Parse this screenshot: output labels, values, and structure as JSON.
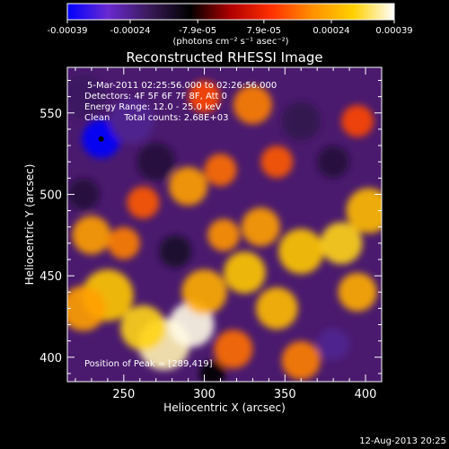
{
  "chart_data": {
    "type": "heatmap",
    "title": "Reconstructed RHESSI Image",
    "xlabel": "Heliocentric X (arcsec)",
    "ylabel": "Heliocentric Y (arcsec)",
    "xlim": [
      215,
      410
    ],
    "ylim": [
      385,
      578
    ],
    "x_ticks": [
      250,
      300,
      350,
      400
    ],
    "y_ticks": [
      400,
      450,
      500,
      550
    ],
    "colorbar": {
      "range": [
        -0.00039,
        0.00039
      ],
      "ticks": [
        "-0.00039",
        "-0.00024",
        "-7.9e-05",
        "7.9e-05",
        "0.00024",
        "0.00039"
      ],
      "tick_values": [
        -0.00039,
        -0.00024,
        -7.9e-05,
        7.9e-05,
        0.00024,
        0.00039
      ],
      "label": "(photons cm⁻² s⁻¹ asec⁻²)",
      "colors": [
        "#0000ff",
        "#6a2ad0",
        "#3a1a5a",
        "#000000",
        "#b00000",
        "#ff3000",
        "#ff9000",
        "#ffd000",
        "#ffffff"
      ]
    },
    "annotations": [
      "5-Mar-2011 02:25:56.000 to 02:26:56.000",
      "Detectors: 4F 5F 6F 7F 8F, Att 0",
      "Energy Range: 12.0 - 25.0 keV",
      "Clean     Total counts: 2.68E+03"
    ],
    "peak_label": "Position of Peak = [289,419]",
    "min_marker": {
      "x": 236,
      "y": 534
    },
    "hotspots": [
      {
        "x": 275,
        "y": 408,
        "value": 0.00036,
        "r": 16
      },
      {
        "x": 292,
        "y": 420,
        "value": 0.00038,
        "r": 14
      },
      {
        "x": 262,
        "y": 418,
        "value": 0.0003,
        "r": 14
      },
      {
        "x": 240,
        "y": 438,
        "value": 0.00028,
        "r": 16
      },
      {
        "x": 225,
        "y": 430,
        "value": 0.00022,
        "r": 14
      },
      {
        "x": 300,
        "y": 440,
        "value": 0.00024,
        "r": 14
      },
      {
        "x": 325,
        "y": 452,
        "value": 0.00028,
        "r": 13
      },
      {
        "x": 345,
        "y": 430,
        "value": 0.00026,
        "r": 13
      },
      {
        "x": 360,
        "y": 465,
        "value": 0.00028,
        "r": 14
      },
      {
        "x": 385,
        "y": 470,
        "value": 0.0003,
        "r": 13
      },
      {
        "x": 402,
        "y": 490,
        "value": 0.00026,
        "r": 14
      },
      {
        "x": 395,
        "y": 440,
        "value": 0.00024,
        "r": 12
      },
      {
        "x": 335,
        "y": 480,
        "value": 0.00022,
        "r": 12
      },
      {
        "x": 312,
        "y": 475,
        "value": 0.0002,
        "r": 10
      },
      {
        "x": 290,
        "y": 505,
        "value": 0.00022,
        "r": 12
      },
      {
        "x": 310,
        "y": 515,
        "value": 0.00016,
        "r": 10
      },
      {
        "x": 262,
        "y": 495,
        "value": 0.00014,
        "r": 10
      },
      {
        "x": 230,
        "y": 475,
        "value": 0.00022,
        "r": 12
      },
      {
        "x": 250,
        "y": 470,
        "value": 0.00018,
        "r": 10
      },
      {
        "x": 345,
        "y": 520,
        "value": 0.00014,
        "r": 10
      },
      {
        "x": 330,
        "y": 555,
        "value": 0.00018,
        "r": 12
      },
      {
        "x": 300,
        "y": 560,
        "value": 0.00012,
        "r": 10
      },
      {
        "x": 395,
        "y": 545,
        "value": 0.00012,
        "r": 10
      },
      {
        "x": 318,
        "y": 405,
        "value": 0.00016,
        "r": 12
      },
      {
        "x": 360,
        "y": 398,
        "value": 0.00018,
        "r": 12
      },
      {
        "x": 236,
        "y": 534,
        "value": -0.00039,
        "r": 12
      },
      {
        "x": 255,
        "y": 545,
        "value": -0.00024,
        "r": 14
      },
      {
        "x": 225,
        "y": 560,
        "value": -0.0002,
        "r": 14
      },
      {
        "x": 270,
        "y": 520,
        "value": -0.00016,
        "r": 12
      },
      {
        "x": 380,
        "y": 408,
        "value": -0.00024,
        "r": 10
      },
      {
        "x": 360,
        "y": 545,
        "value": -0.00018,
        "r": 12
      },
      {
        "x": 380,
        "y": 520,
        "value": -0.00016,
        "r": 10
      },
      {
        "x": 282,
        "y": 465,
        "value": -0.00014,
        "r": 10
      },
      {
        "x": 225,
        "y": 500,
        "value": -0.00016,
        "r": 10
      },
      {
        "x": 305,
        "y": 390,
        "value": -0.0001,
        "r": 8
      }
    ]
  },
  "footer": {
    "date": "12-Aug-2013 20:25"
  }
}
